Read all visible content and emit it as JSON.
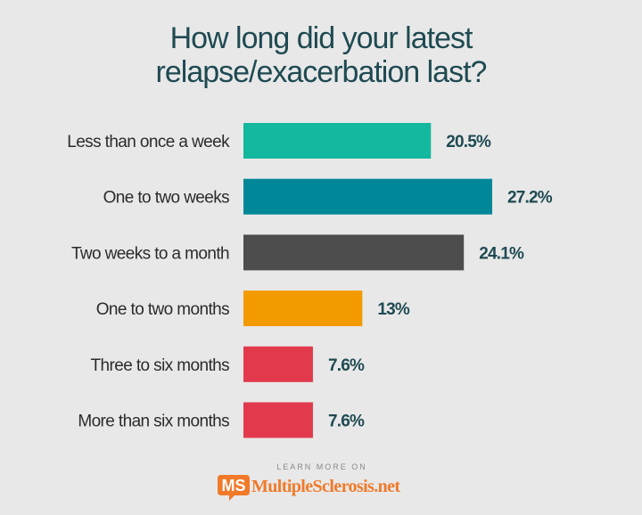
{
  "chart_data": {
    "type": "bar",
    "orientation": "horizontal",
    "title": [
      "How long did your latest",
      "relapse/exacerbation last?"
    ],
    "categories": [
      "Less than once a week",
      "One to two weeks",
      "Two weeks to a month",
      "One to two months",
      "Three to six months",
      "More than six months"
    ],
    "values": [
      20.5,
      27.2,
      24.1,
      13,
      7.6,
      7.6
    ],
    "value_labels": [
      "20.5%",
      "27.2%",
      "24.1%",
      "13%",
      "7.6%",
      "7.6%"
    ],
    "colors": [
      "#14b89e",
      "#008898",
      "#4d4d4d",
      "#f39a00",
      "#e23a4c",
      "#e23a4c"
    ],
    "xlim": [
      0,
      27.2
    ],
    "xlabel": "",
    "ylabel": "",
    "grid": false,
    "legend": "none"
  },
  "footer": {
    "learn_more": "LEARN MORE ON",
    "logo_mark": "MS",
    "logo_text": "MultipleSclerosis.net",
    "logo_color": "#f07a2a"
  }
}
